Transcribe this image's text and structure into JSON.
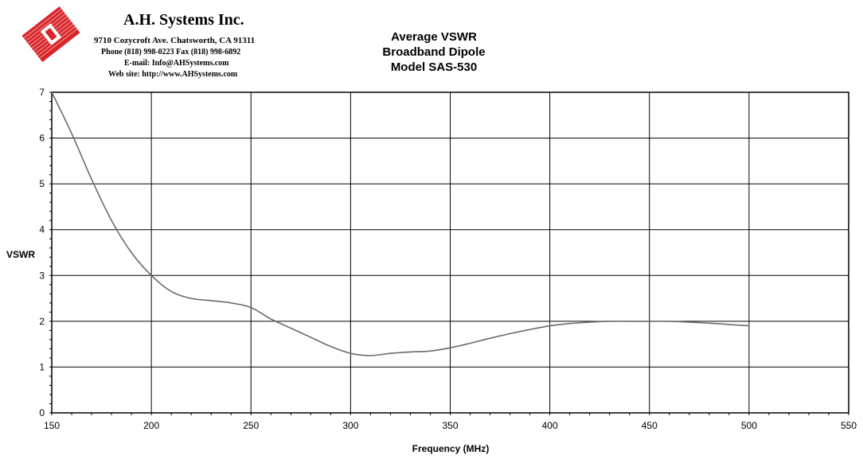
{
  "company": {
    "name": "A.H. Systems Inc.",
    "address": "9710 Cozycroft Ave. Chatsworth, CA 91311",
    "phone": "Phone (818) 998-0223 Fax (818) 998-6892",
    "email": "E-mail: Info@AHSystems.com",
    "website": "Web site: http://www.AHSystems.com",
    "logo_color": "#d9262b"
  },
  "chart_data": {
    "type": "line",
    "title_lines": [
      "Average VSWR",
      "Broadband Dipole",
      "Model SAS-530"
    ],
    "xlabel": "Frequency (MHz)",
    "ylabel": "VSWR",
    "xlim": [
      150,
      550
    ],
    "ylim": [
      0,
      7
    ],
    "x_ticks": [
      150,
      200,
      250,
      300,
      350,
      400,
      450,
      500,
      550
    ],
    "y_ticks": [
      0,
      1,
      2,
      3,
      4,
      5,
      6,
      7
    ],
    "grid": true,
    "line_color": "#6b6b6b",
    "series": [
      {
        "x": [
          150,
          160,
          170,
          180,
          190,
          200,
          210,
          220,
          230,
          240,
          250,
          260,
          270,
          280,
          290,
          300,
          310,
          320,
          330,
          340,
          350,
          360,
          370,
          380,
          390,
          400,
          410,
          420,
          430,
          440,
          450,
          460,
          470,
          480,
          490,
          500
        ],
        "values": [
          7.0,
          6.1,
          5.1,
          4.2,
          3.5,
          3.0,
          2.65,
          2.5,
          2.45,
          2.4,
          2.3,
          2.05,
          1.85,
          1.65,
          1.45,
          1.3,
          1.25,
          1.3,
          1.33,
          1.35,
          1.42,
          1.52,
          1.63,
          1.73,
          1.82,
          1.9,
          1.95,
          1.98,
          2.0,
          2.0,
          2.0,
          2.0,
          1.98,
          1.96,
          1.93,
          1.9
        ]
      }
    ]
  }
}
